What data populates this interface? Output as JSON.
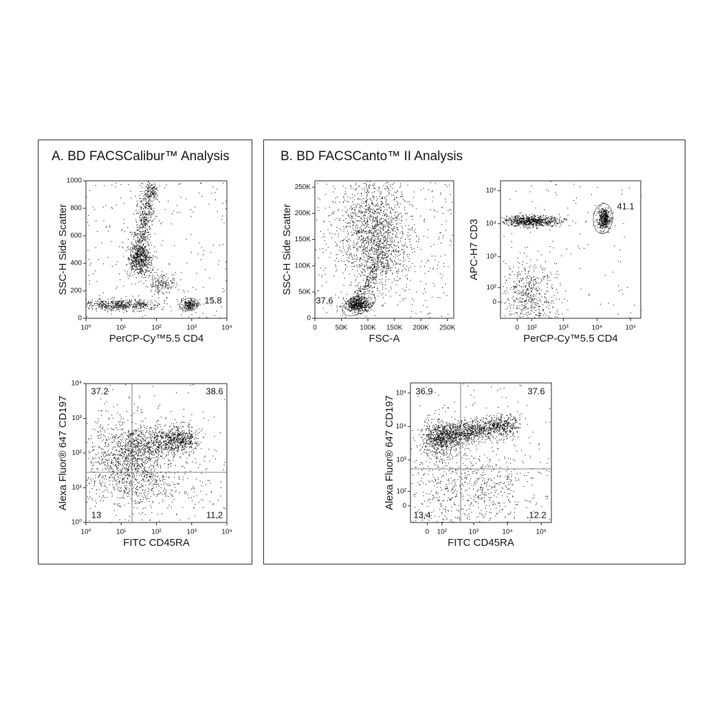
{
  "panels": [
    {
      "title": "A. BD FACSCalibur™ Analysis",
      "plots": [
        {
          "xlabel": "PerCP-Cy™5.5 CD4",
          "ylabel": "SSC-H Side Scatter",
          "xscale": "log",
          "yscale": "linear",
          "xlim": [
            1,
            10000
          ],
          "ylim": [
            0,
            1000
          ],
          "xticks": [
            {
              "value": 1,
              "label": "10⁰"
            },
            {
              "value": 10,
              "label": "10¹"
            },
            {
              "value": 100,
              "label": "10²"
            },
            {
              "value": 1000,
              "label": "10³"
            },
            {
              "value": 10000,
              "label": "10⁴"
            }
          ],
          "yticks": [
            0,
            200,
            400,
            600,
            800,
            1000
          ],
          "gate_labels": [
            15.8
          ]
        },
        {
          "xlabel": "FITC CD45RA",
          "ylabel": "Alexa Fluor® 647 CD197",
          "xscale": "log",
          "yscale": "log",
          "xlim": [
            1,
            10000
          ],
          "ylim": [
            1,
            10000
          ],
          "xticks": [
            {
              "value": 1,
              "label": "10⁰"
            },
            {
              "value": 10,
              "label": "10¹"
            },
            {
              "value": 100,
              "label": "10²"
            },
            {
              "value": 1000,
              "label": "10³"
            },
            {
              "value": 10000,
              "label": "10⁴"
            }
          ],
          "yticks": [
            {
              "value": 1,
              "label": "10⁰"
            },
            {
              "value": 10,
              "label": "10¹"
            },
            {
              "value": 100,
              "label": "10²"
            },
            {
              "value": 1000,
              "label": "10³"
            },
            {
              "value": 10000,
              "label": "10⁴"
            }
          ],
          "quadrants": [
            37.2,
            38.6,
            13,
            11.2
          ]
        }
      ]
    },
    {
      "title": "B. BD FACSCanto™ II Analysis",
      "plots": [
        {
          "xlabel": "FSC-A",
          "ylabel": "SSC-H Side Scatter",
          "xscale": "linear",
          "yscale": "linear",
          "xlim": [
            0,
            262000
          ],
          "ylim": [
            0,
            262000
          ],
          "xticks": [
            0,
            {
              "value": 50000,
              "label": "50K"
            },
            {
              "value": 100000,
              "label": "100K"
            },
            {
              "value": 150000,
              "label": "150K"
            },
            {
              "value": 200000,
              "label": "200K"
            },
            {
              "value": 250000,
              "label": "250K"
            }
          ],
          "yticks": [
            0,
            {
              "value": 50000,
              "label": "50K"
            },
            {
              "value": 100000,
              "label": "100K"
            },
            {
              "value": 150000,
              "label": "150K"
            },
            {
              "value": 200000,
              "label": "200K"
            },
            {
              "value": 250000,
              "label": "250K"
            }
          ],
          "gate_labels": [
            37.6
          ]
        },
        {
          "xlabel": "PerCP-Cy™5.5 CD4",
          "ylabel": "APC-H7 CD3",
          "xscale": "biexponential",
          "yscale": "biexponential",
          "xlim": [
            -120,
            200000
          ],
          "ylim": [
            -120,
            200000
          ],
          "xticks": [
            0,
            {
              "value": 100,
              "label": "10²"
            },
            {
              "value": 1000,
              "label": "10³"
            },
            {
              "value": 10000,
              "label": "10⁴"
            },
            {
              "value": 100000,
              "label": "10⁵"
            }
          ],
          "yticks": [
            0,
            {
              "value": 100,
              "label": "10²"
            },
            {
              "value": 1000,
              "label": "10³"
            },
            {
              "value": 10000,
              "label": "10⁴"
            },
            {
              "value": 100000,
              "label": "10⁵"
            }
          ],
          "gate_labels": [
            41.1
          ]
        },
        {
          "xlabel": "FITC CD45RA",
          "ylabel": "Alexa Fluor® 647 CD197",
          "xscale": "biexponential",
          "yscale": "biexponential",
          "xlim": [
            -120,
            200000
          ],
          "ylim": [
            -120,
            200000
          ],
          "xticks": [
            0,
            {
              "value": 100,
              "label": "10²"
            },
            {
              "value": 1000,
              "label": "10³"
            },
            {
              "value": 10000,
              "label": "10⁴"
            },
            {
              "value": 100000,
              "label": "10⁵"
            }
          ],
          "yticks": [
            0,
            {
              "value": 100,
              "label": "10²"
            },
            {
              "value": 1000,
              "label": "10³"
            },
            {
              "value": 10000,
              "label": "10⁴"
            },
            {
              "value": 100000,
              "label": "10⁵"
            }
          ],
          "quadrants": [
            36.9,
            37.6,
            13.4,
            12.2
          ]
        }
      ]
    }
  ]
}
